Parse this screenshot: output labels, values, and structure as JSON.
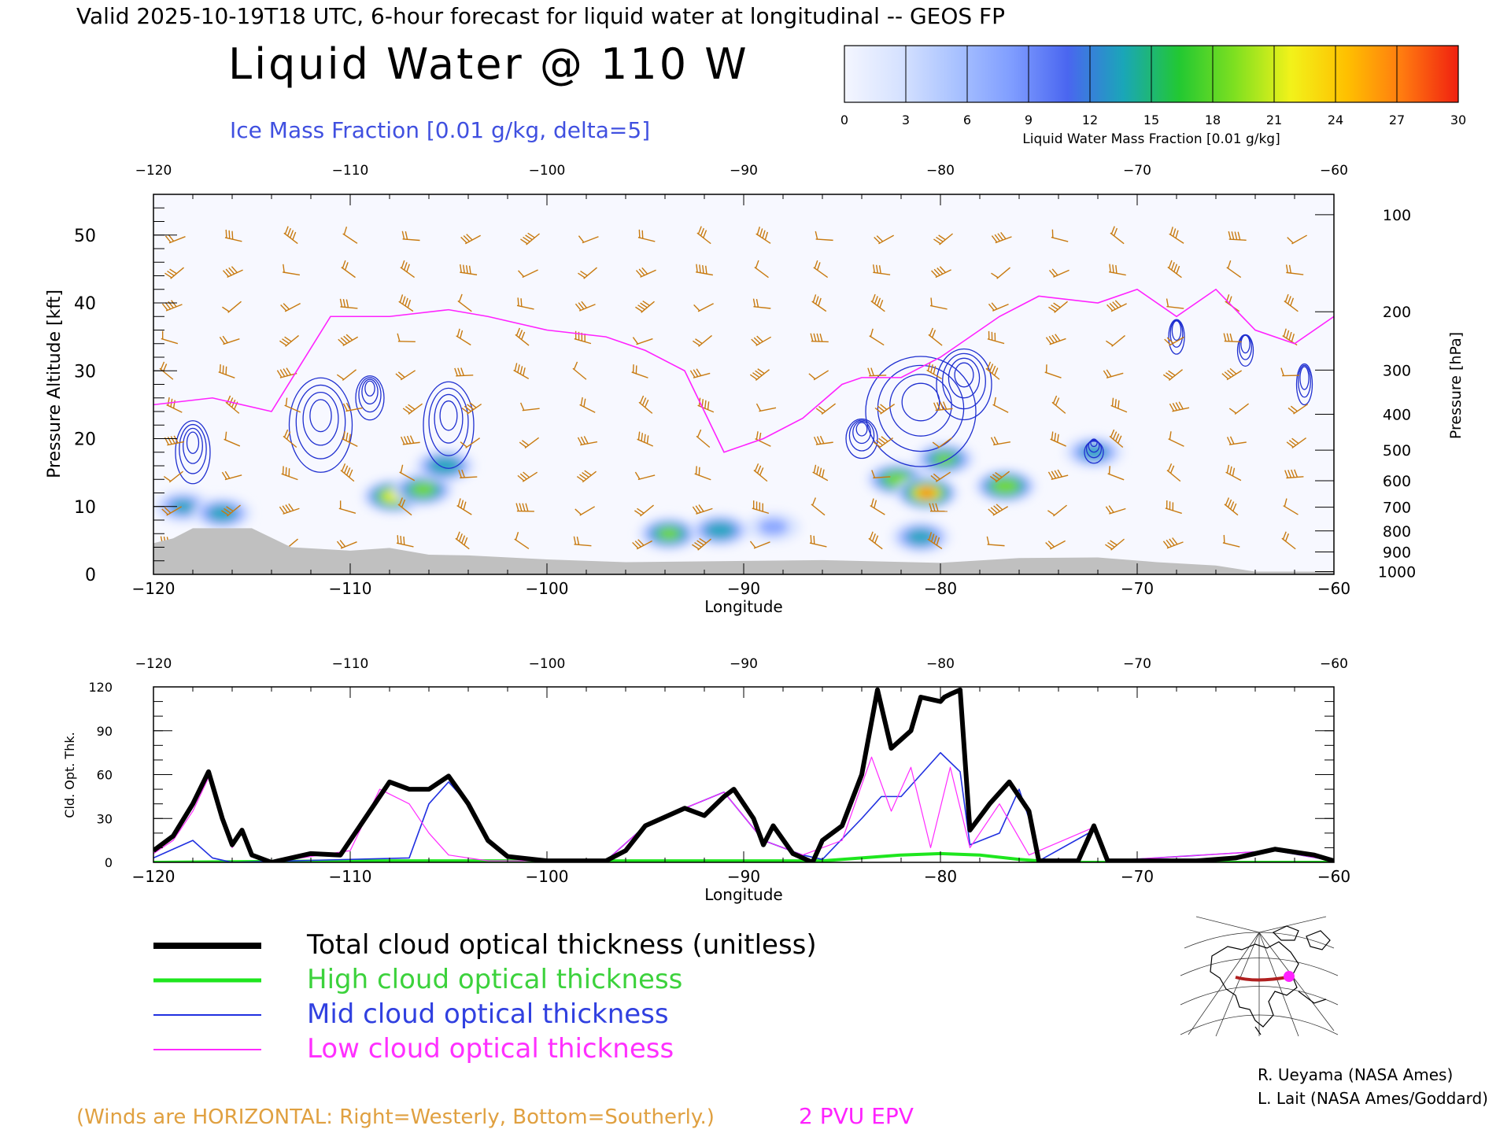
{
  "header": {
    "valid_line": "Valid 2025-10-19T18 UTC, 6-hour forecast for liquid water at longitudinal -- GEOS FP",
    "main_title": "Liquid Water @ 110 W",
    "subtitle": "Ice Mass Fraction [0.01 g/kg, delta=5]"
  },
  "colorbar": {
    "ticks": [
      "0",
      "3",
      "6",
      "9",
      "12",
      "15",
      "18",
      "21",
      "24",
      "27",
      "30"
    ],
    "label": "Liquid Water Mass Fraction [0.01 g/kg]",
    "colors": [
      "#f4f6ff",
      "#d6e2ff",
      "#a9c2ff",
      "#7f9dff",
      "#4a66f0",
      "#1aa6b8",
      "#22c832",
      "#7fe020",
      "#f2f21a",
      "#ffc000",
      "#ff7a10",
      "#f02010"
    ]
  },
  "chart_data": [
    {
      "type": "heatmap",
      "title": "Liquid Water @ 110 W",
      "xlabel": "Longitude",
      "ylabel": "Pressure Altitude [kft]",
      "y2label": "Pressure [hPa]",
      "xlim": [
        -120,
        -60
      ],
      "ylim": [
        0,
        56
      ],
      "xticks": [
        "-120",
        "-110",
        "-100",
        "-90",
        "-80",
        "-70",
        "-60"
      ],
      "yticks": [
        "0",
        "10",
        "20",
        "30",
        "40",
        "50"
      ],
      "pressure_ticks": [
        "100",
        "200",
        "300",
        "400",
        "500",
        "600",
        "700",
        "800",
        "900",
        "1000"
      ],
      "liquid_water_blobs": [
        {
          "lon": -118.5,
          "alt": 10,
          "peak": 13
        },
        {
          "lon": -116.5,
          "alt": 9,
          "peak": 15
        },
        {
          "lon": -107.8,
          "alt": 11.5,
          "peak": 24
        },
        {
          "lon": -106.3,
          "alt": 12.5,
          "peak": 20
        },
        {
          "lon": -105.2,
          "alt": 16,
          "peak": 17
        },
        {
          "lon": -93.8,
          "alt": 6,
          "peak": 19
        },
        {
          "lon": -91.2,
          "alt": 6.5,
          "peak": 16
        },
        {
          "lon": -88.5,
          "alt": 7,
          "peak": 9
        },
        {
          "lon": -82.2,
          "alt": 14,
          "peak": 21
        },
        {
          "lon": -80.7,
          "alt": 12,
          "peak": 27
        },
        {
          "lon": -79.8,
          "alt": 17,
          "peak": 18
        },
        {
          "lon": -76.7,
          "alt": 13,
          "peak": 22
        },
        {
          "lon": -72.2,
          "alt": 18,
          "peak": 14
        },
        {
          "lon": -81,
          "alt": 5.5,
          "peak": 15
        }
      ],
      "epv_2pvu_alt": [
        [
          -120,
          25
        ],
        [
          -117,
          26
        ],
        [
          -114,
          24
        ],
        [
          -111,
          38
        ],
        [
          -108,
          38
        ],
        [
          -105,
          39
        ],
        [
          -103,
          38
        ],
        [
          -100,
          36
        ],
        [
          -97,
          35
        ],
        [
          -95,
          33
        ],
        [
          -93,
          30
        ],
        [
          -91,
          18
        ],
        [
          -89,
          20
        ],
        [
          -87,
          23
        ],
        [
          -85,
          28
        ],
        [
          -84,
          29
        ],
        [
          -82,
          29
        ],
        [
          -80,
          32
        ],
        [
          -77,
          38
        ],
        [
          -75,
          41
        ],
        [
          -72,
          40
        ],
        [
          -70,
          42
        ],
        [
          -68,
          38
        ],
        [
          -66,
          42
        ],
        [
          -64,
          36
        ],
        [
          -62,
          34
        ],
        [
          -60,
          38
        ]
      ],
      "terrain_alt": [
        [
          -120,
          4.6
        ],
        [
          -119,
          5.3
        ],
        [
          -118,
          6.8
        ],
        [
          -115,
          6.8
        ],
        [
          -113,
          4
        ],
        [
          -110,
          3.5
        ],
        [
          -108,
          3.9
        ],
        [
          -106,
          2.9
        ],
        [
          -104,
          2.8
        ],
        [
          -100,
          2.2
        ],
        [
          -96,
          1.8
        ],
        [
          -86,
          2.1
        ],
        [
          -80,
          1.7
        ],
        [
          -76,
          2.4
        ],
        [
          -72,
          2.5
        ],
        [
          -69,
          1.8
        ],
        [
          -66,
          1.3
        ],
        [
          -64,
          0.4
        ],
        [
          -60,
          0.4
        ]
      ]
    },
    {
      "type": "line",
      "xlabel": "Longitude",
      "ylabel": "Cld. Opt. Thk.",
      "xlim": [
        -120,
        -60
      ],
      "ylim": [
        0,
        120
      ],
      "xticks": [
        "-120",
        "-110",
        "-100",
        "-90",
        "-80",
        "-70",
        "-60"
      ],
      "yticks": [
        "0",
        "30",
        "60",
        "90",
        "120"
      ],
      "series": [
        {
          "name": "Total cloud optical thickness (unitless)",
          "color": "#000000",
          "points": [
            [
              -120,
              8
            ],
            [
              -119,
              18
            ],
            [
              -118,
              40
            ],
            [
              -117.2,
              62
            ],
            [
              -116.5,
              30
            ],
            [
              -116,
              12
            ],
            [
              -115.5,
              22
            ],
            [
              -115,
              5
            ],
            [
              -114,
              0
            ],
            [
              -112,
              6
            ],
            [
              -110.5,
              5
            ],
            [
              -109.5,
              25
            ],
            [
              -108,
              55
            ],
            [
              -107,
              50
            ],
            [
              -106,
              50
            ],
            [
              -105,
              59
            ],
            [
              -104,
              40
            ],
            [
              -103,
              15
            ],
            [
              -102,
              4
            ],
            [
              -100,
              1
            ],
            [
              -97,
              1
            ],
            [
              -96,
              8
            ],
            [
              -95,
              25
            ],
            [
              -93,
              37
            ],
            [
              -92,
              32
            ],
            [
              -91,
              45
            ],
            [
              -90.5,
              50
            ],
            [
              -89.5,
              30
            ],
            [
              -89,
              12
            ],
            [
              -88.5,
              25
            ],
            [
              -87.5,
              6
            ],
            [
              -86.5,
              0
            ],
            [
              -86,
              15
            ],
            [
              -85,
              25
            ],
            [
              -84,
              60
            ],
            [
              -83.2,
              118
            ],
            [
              -82.5,
              78
            ],
            [
              -81.5,
              90
            ],
            [
              -81,
              113
            ],
            [
              -80,
              110
            ],
            [
              -79.8,
              113
            ],
            [
              -79.5,
              115
            ],
            [
              -79,
              118
            ],
            [
              -78.5,
              22
            ],
            [
              -77.5,
              40
            ],
            [
              -76.5,
              55
            ],
            [
              -75.5,
              35
            ],
            [
              -75,
              1
            ],
            [
              -73,
              1
            ],
            [
              -72.2,
              25
            ],
            [
              -71.5,
              1
            ],
            [
              -67,
              1
            ],
            [
              -65,
              3
            ],
            [
              -63,
              9
            ],
            [
              -61,
              5
            ],
            [
              -60,
              1
            ]
          ]
        },
        {
          "name": "High cloud optical thickness",
          "color": "#1ee61e",
          "points": [
            [
              -120,
              0
            ],
            [
              -110,
              1
            ],
            [
              -86,
              1
            ],
            [
              -84,
              3
            ],
            [
              -82,
              5
            ],
            [
              -80,
              6
            ],
            [
              -78,
              5
            ],
            [
              -76,
              2
            ],
            [
              -74,
              0
            ],
            [
              -60,
              0
            ]
          ]
        },
        {
          "name": "Mid cloud optical thickness",
          "color": "#2030e0",
          "points": [
            [
              -120,
              3
            ],
            [
              -118,
              15
            ],
            [
              -117,
              3
            ],
            [
              -116,
              0
            ],
            [
              -107,
              3
            ],
            [
              -106,
              40
            ],
            [
              -105,
              55
            ],
            [
              -104,
              40
            ],
            [
              -103,
              15
            ],
            [
              -102,
              4
            ],
            [
              -100,
              1
            ],
            [
              -97,
              1
            ],
            [
              -95,
              25
            ],
            [
              -93,
              37
            ],
            [
              -91,
              48
            ],
            [
              -89,
              15
            ],
            [
              -87,
              5
            ],
            [
              -86,
              2
            ],
            [
              -84,
              30
            ],
            [
              -83,
              45
            ],
            [
              -82,
              45
            ],
            [
              -81,
              60
            ],
            [
              -80,
              75
            ],
            [
              -79,
              62
            ],
            [
              -78.5,
              12
            ],
            [
              -77,
              20
            ],
            [
              -76,
              50
            ],
            [
              -75.5,
              30
            ],
            [
              -75,
              1
            ],
            [
              -72.2,
              22
            ],
            [
              -71.5,
              1
            ],
            [
              -63,
              8
            ],
            [
              -60,
              1
            ]
          ]
        },
        {
          "name": "Low cloud optical thickness",
          "color": "#ff2aff",
          "points": [
            [
              -120,
              6
            ],
            [
              -119,
              15
            ],
            [
              -118,
              35
            ],
            [
              -117.2,
              58
            ],
            [
              -116.5,
              28
            ],
            [
              -116,
              10
            ],
            [
              -115.5,
              20
            ],
            [
              -115,
              4
            ],
            [
              -114,
              0
            ],
            [
              -112,
              4
            ],
            [
              -110,
              8
            ],
            [
              -108.5,
              50
            ],
            [
              -107,
              40
            ],
            [
              -106,
              20
            ],
            [
              -105,
              5
            ],
            [
              -103,
              1
            ],
            [
              -97,
              1
            ],
            [
              -95,
              25
            ],
            [
              -93,
              37
            ],
            [
              -91,
              48
            ],
            [
              -89,
              15
            ],
            [
              -87,
              5
            ],
            [
              -85,
              15
            ],
            [
              -83.5,
              72
            ],
            [
              -82.5,
              35
            ],
            [
              -81.5,
              65
            ],
            [
              -80.5,
              10
            ],
            [
              -79.5,
              65
            ],
            [
              -78.5,
              10
            ],
            [
              -77,
              40
            ],
            [
              -75.5,
              5
            ],
            [
              -72.2,
              24
            ],
            [
              -71.5,
              1
            ],
            [
              -63,
              8
            ],
            [
              -60,
              1
            ]
          ]
        }
      ]
    }
  ],
  "legend": {
    "entries": [
      {
        "label": "Total cloud optical thickness (unitless)",
        "color": "#000000",
        "text_color": "#000000"
      },
      {
        "label": "High cloud optical thickness",
        "color": "#1ee61e",
        "text_color": "#3cd23c"
      },
      {
        "label": "Mid cloud optical thickness",
        "color": "#2030e0",
        "text_color": "#3040e0"
      },
      {
        "label": "Low cloud optical thickness",
        "color": "#ff2aff",
        "text_color": "#ff30ff"
      }
    ]
  },
  "footer": {
    "winds_note": "(Winds are HORIZONTAL: Right=Westerly, Bottom=Southerly.)",
    "epv_label": "2 PVU EPV",
    "credit_1": "R. Ueyama (NASA Ames)",
    "credit_2": "L. Lait (NASA Ames/Goddard)"
  },
  "colors": {
    "wind_barb": "#c87a10",
    "ice_contour": "#1f2fd0",
    "epv_line": "#ff22ff",
    "terrain": "#c0c0c0",
    "subtitle": "#4050e0",
    "winds_note": "#e0a040",
    "epv_label": "#ff22ff",
    "map_track": "#b02020",
    "map_dot": "#ff22ff"
  }
}
